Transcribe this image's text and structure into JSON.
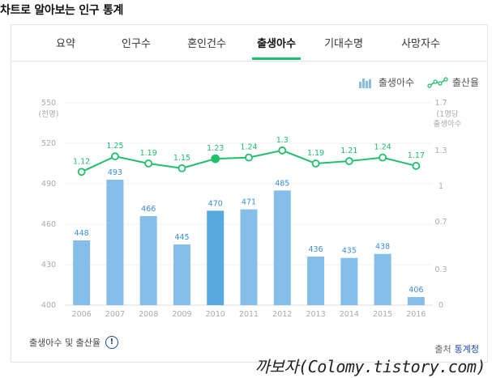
{
  "page": {
    "title": "차트로 알아보는 인구 통계"
  },
  "tabs": [
    {
      "label": "요약"
    },
    {
      "label": "인구수"
    },
    {
      "label": "혼인건수"
    },
    {
      "label": "출생아수"
    },
    {
      "label": "기대수명"
    },
    {
      "label": "사망자수"
    }
  ],
  "active_tab": 3,
  "legend": {
    "bars": "출생아수",
    "line": "출산율"
  },
  "colors": {
    "bar": "#85bfe9",
    "bar_highlight": "#57a9df",
    "line": "#1ec06a",
    "tab_active": "#1ec06a"
  },
  "footer": {
    "info_text": "출생아수 및 출산율",
    "source_label": "출처",
    "source_name": "통계청"
  },
  "watermark": "까보자(Colomy.tistory.com)",
  "chart_data": {
    "type": "bar",
    "categories": [
      "2006",
      "2007",
      "2008",
      "2009",
      "2010",
      "2011",
      "2012",
      "2013",
      "2014",
      "2015",
      "2016"
    ],
    "series": [
      {
        "name": "출생아수",
        "type": "bar",
        "axis": "left",
        "values": [
          448,
          493,
          466,
          445,
          470,
          471,
          485,
          436,
          435,
          438,
          406
        ],
        "highlight_index": 4
      },
      {
        "name": "출산율",
        "type": "line",
        "axis": "right",
        "values": [
          1.12,
          1.25,
          1.19,
          1.15,
          1.23,
          1.24,
          1.3,
          1.19,
          1.21,
          1.24,
          1.17
        ],
        "highlight_index": 4
      }
    ],
    "y_left": {
      "min": 400,
      "max": 550,
      "ticks": [
        400,
        430,
        460,
        490,
        520,
        550
      ],
      "unit_label": "(천명)"
    },
    "y_right": {
      "min": 0,
      "max": 1.7,
      "ticks": [
        0,
        0.3,
        0.7,
        1,
        1.3,
        1.7
      ],
      "unit_label_lines": [
        "(1명당",
        "출생아수"
      ]
    },
    "grid": true,
    "legend_position": "top-right"
  }
}
